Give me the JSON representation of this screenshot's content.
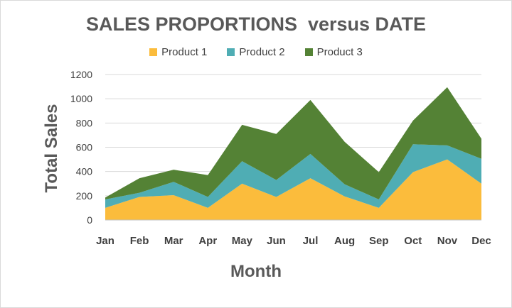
{
  "chart_data": {
    "type": "area",
    "stacked": true,
    "title": "SALES PROPORTIONS  versus DATE",
    "xlabel": "Month",
    "ylabel": "Total Sales",
    "categories": [
      "Jan",
      "Feb",
      "Mar",
      "Apr",
      "May",
      "Jun",
      "Jul",
      "Aug",
      "Sep",
      "Oct",
      "Nov",
      "Dec"
    ],
    "series": [
      {
        "name": "Product 1",
        "color": "#fbbc3c",
        "values": [
          100,
          190,
          205,
          100,
          300,
          190,
          345,
          195,
          100,
          395,
          500,
          300
        ]
      },
      {
        "name": "Product 2",
        "color": "#4fadb4",
        "values": [
          70,
          35,
          110,
          90,
          185,
          140,
          200,
          100,
          70,
          230,
          115,
          205
        ]
      },
      {
        "name": "Product 3",
        "color": "#548235",
        "values": [
          15,
          120,
          100,
          180,
          300,
          380,
          445,
          350,
          225,
          195,
          480,
          165
        ]
      }
    ],
    "yticks": [
      "0",
      "200",
      "400",
      "600",
      "800",
      "1000",
      "1200"
    ],
    "ylim": [
      0,
      1200
    ],
    "grid": true,
    "legend_position": "top"
  }
}
